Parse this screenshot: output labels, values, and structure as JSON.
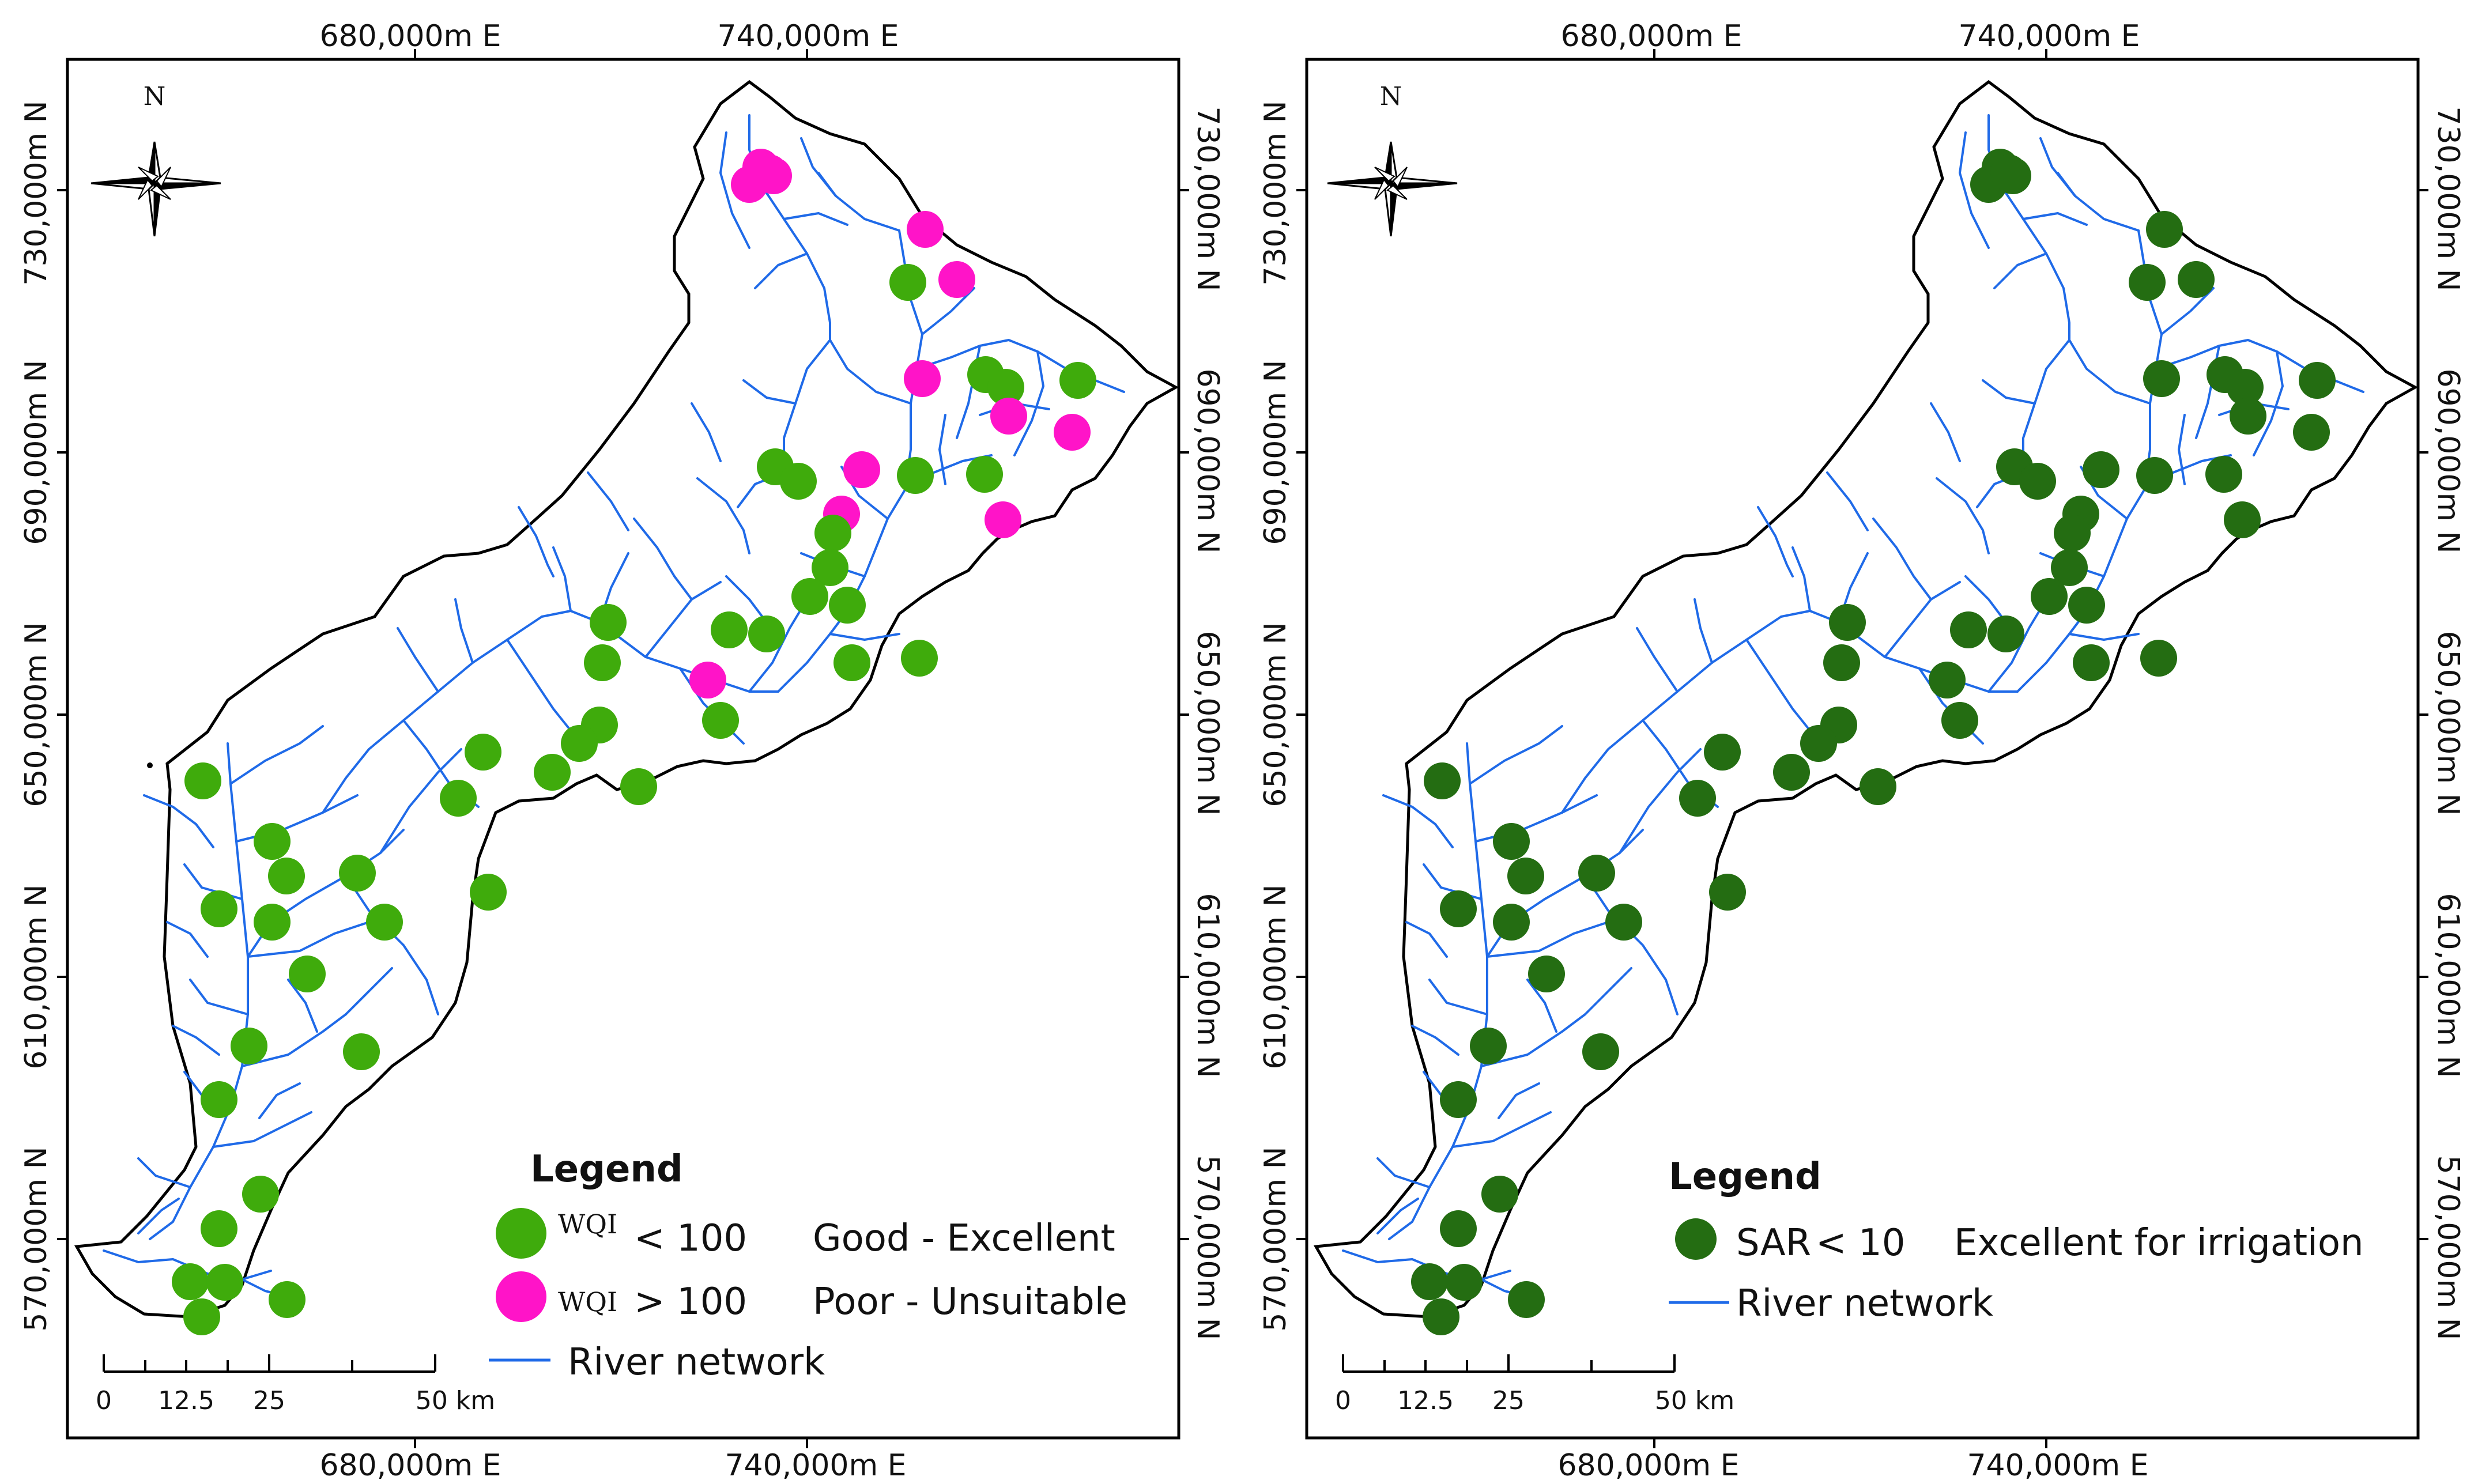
{
  "colors": {
    "wqi_good": "#3fab0c",
    "wqi_poor": "#ff14c8",
    "sar_excellent": "#246d12",
    "river": "#1f6ae8",
    "boundary": "#000000",
    "frame": "#000000"
  },
  "left_map": {
    "top_axis_labels": [
      "680,000m E",
      "740,000m E"
    ],
    "bottom_axis_labels": [
      "680,000m E",
      "740,000m E"
    ],
    "left_axis_labels": [
      "730,000m N",
      "690,000m N",
      "650,000m N",
      "610,000m N",
      "570,000m N"
    ],
    "right_axis_labels": [
      "730,000m N",
      "690,000m N",
      "650,000m N",
      "610,000m N",
      "570,000m N"
    ],
    "north_arrow_label": "N",
    "north_arrow_icon": "compass-rose-icon",
    "legend": {
      "title": "Legend",
      "items": [
        {
          "symbol": "WQI",
          "condition": "< 100",
          "class": "Good - Excellent"
        },
        {
          "symbol": "WQI",
          "condition": "> 100",
          "class": "Poor - Unsuitable"
        }
      ],
      "river_label": "River network"
    },
    "scale_bar": {
      "ticks": [
        "0",
        "12.5",
        "25",
        "50 km"
      ]
    }
  },
  "right_map": {
    "top_axis_labels": [
      "680,000m E",
      "740,000m E"
    ],
    "bottom_axis_labels": [
      "680,000m E",
      "740,000m E"
    ],
    "left_axis_labels": [
      "730,000m N",
      "690,000m N",
      "650,000m N",
      "610,000m N",
      "570,000m N"
    ],
    "right_axis_labels": [
      "730,000m N",
      "690,000m N",
      "650,000m N",
      "610,000m N",
      "570,000m N"
    ],
    "north_arrow_label": "N",
    "north_arrow_icon": "compass-rose-icon",
    "legend": {
      "title": "Legend",
      "items": [
        {
          "symbol": "SAR",
          "condition": "< 10",
          "class": "Excellent for irrigation"
        }
      ],
      "river_label": "River network"
    },
    "scale_bar": {
      "ticks": [
        "0",
        "12.5",
        "25",
        "50 km"
      ]
    }
  }
}
